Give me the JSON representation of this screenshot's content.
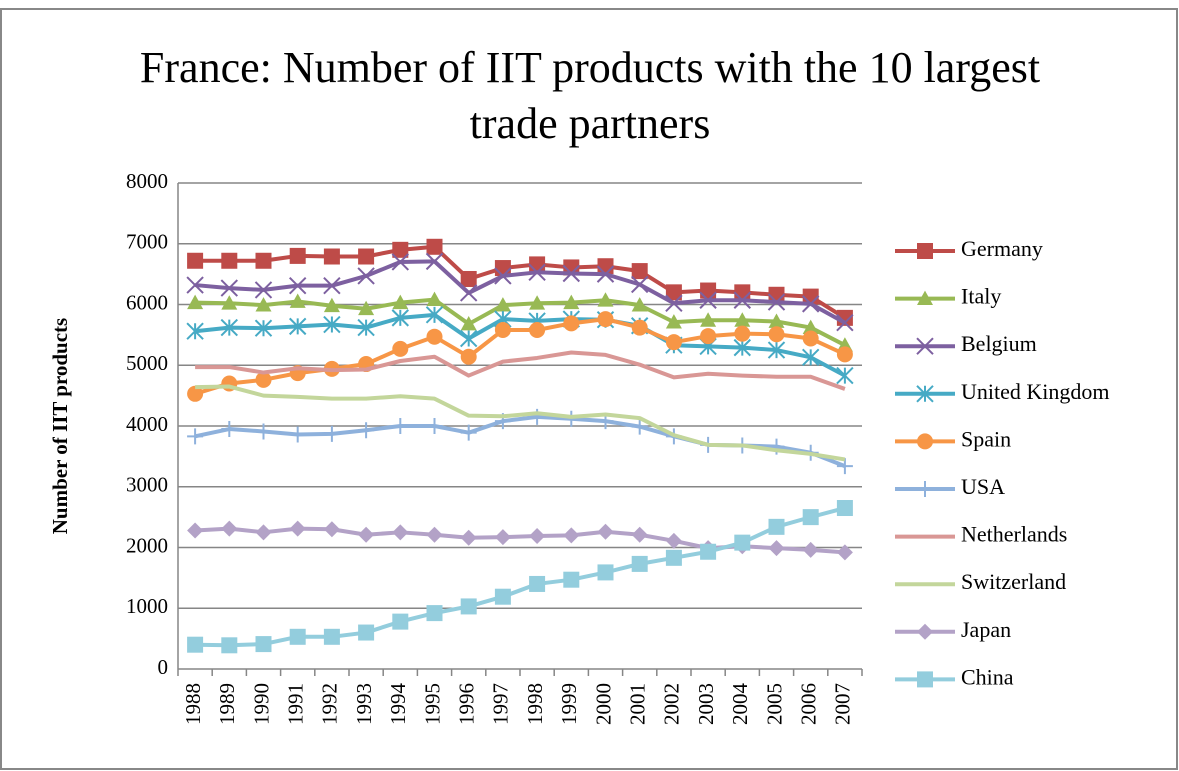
{
  "chart_data": {
    "type": "line",
    "title": "France: Number of IIT products with the 10 largest trade partners",
    "y_axis_label": "Number of IIT products",
    "categories": [
      "1988",
      "1989",
      "1990",
      "1991",
      "1992",
      "1993",
      "1994",
      "1995",
      "1996",
      "1997",
      "1998",
      "1999",
      "2000",
      "2001",
      "2002",
      "2003",
      "2004",
      "2005",
      "2006",
      "2007"
    ],
    "ylim": [
      0,
      8000
    ],
    "yticks": [
      0,
      1000,
      2000,
      3000,
      4000,
      5000,
      6000,
      7000,
      8000
    ],
    "grid": true,
    "legend": "right",
    "series": [
      {
        "name": "Germany",
        "color": "#be4b48",
        "marker": "square",
        "values": [
          6720,
          6720,
          6720,
          6800,
          6790,
          6790,
          6900,
          6950,
          6420,
          6600,
          6660,
          6610,
          6630,
          6550,
          6200,
          6230,
          6200,
          6160,
          6130,
          5780
        ]
      },
      {
        "name": "Italy",
        "color": "#98b954",
        "marker": "triangle",
        "values": [
          6030,
          6020,
          5990,
          6050,
          5980,
          5930,
          6030,
          6080,
          5680,
          5990,
          6020,
          6030,
          6070,
          5990,
          5710,
          5740,
          5740,
          5720,
          5620,
          5330
        ]
      },
      {
        "name": "Belgium",
        "color": "#7d60a0",
        "marker": "x",
        "values": [
          6320,
          6270,
          6240,
          6310,
          6310,
          6470,
          6700,
          6710,
          6190,
          6470,
          6530,
          6510,
          6500,
          6330,
          6020,
          6070,
          6070,
          6040,
          6010,
          5700
        ]
      },
      {
        "name": "United Kingdom",
        "color": "#46aac5",
        "marker": "star",
        "values": [
          5560,
          5620,
          5610,
          5640,
          5670,
          5620,
          5780,
          5830,
          5440,
          5760,
          5730,
          5760,
          5750,
          5650,
          5330,
          5310,
          5290,
          5250,
          5130,
          4830
        ]
      },
      {
        "name": "Spain",
        "color": "#f79646",
        "marker": "circle",
        "values": [
          4530,
          4700,
          4760,
          4870,
          4940,
          5020,
          5270,
          5470,
          5140,
          5580,
          5580,
          5690,
          5760,
          5620,
          5380,
          5480,
          5520,
          5510,
          5440,
          5180
        ]
      },
      {
        "name": "USA",
        "color": "#8eb1dc",
        "marker": "plus",
        "values": [
          3830,
          3950,
          3910,
          3860,
          3870,
          3930,
          4000,
          4000,
          3890,
          4080,
          4150,
          4120,
          4080,
          3990,
          3830,
          3690,
          3680,
          3660,
          3560,
          3340
        ]
      },
      {
        "name": "Netherlands",
        "color": "#d99795",
        "marker": "none",
        "values": [
          4970,
          4970,
          4880,
          4950,
          4920,
          4930,
          5070,
          5140,
          4830,
          5060,
          5120,
          5210,
          5170,
          5010,
          4800,
          4860,
          4830,
          4810,
          4810,
          4610
        ]
      },
      {
        "name": "Switzerland",
        "color": "#c3d69b",
        "marker": "none",
        "values": [
          4640,
          4650,
          4500,
          4480,
          4450,
          4450,
          4490,
          4450,
          4170,
          4160,
          4210,
          4150,
          4190,
          4130,
          3850,
          3690,
          3680,
          3600,
          3540,
          3450
        ]
      },
      {
        "name": "Japan",
        "color": "#b3a2c7",
        "marker": "diamond",
        "values": [
          2280,
          2310,
          2250,
          2310,
          2300,
          2210,
          2250,
          2210,
          2160,
          2170,
          2190,
          2200,
          2260,
          2210,
          2110,
          1990,
          2020,
          1990,
          1960,
          1920
        ]
      },
      {
        "name": "China",
        "color": "#93cddd",
        "marker": "square",
        "values": [
          400,
          390,
          410,
          530,
          530,
          600,
          780,
          920,
          1030,
          1190,
          1400,
          1470,
          1590,
          1730,
          1830,
          1930,
          2080,
          2340,
          2500,
          2650
        ]
      }
    ]
  }
}
